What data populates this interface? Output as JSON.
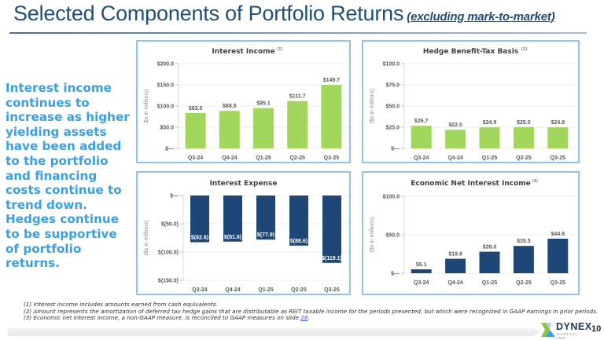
{
  "header": {
    "title": "Selected Components of Portfolio Returns",
    "subtitle": "(excluding mark-to-market)"
  },
  "sidebar": {
    "text": "Interest income continues to increase as higher yielding assets have been added to the portfolio and financing costs continue to trend down. Hedges continue to be supportive of portfolio returns."
  },
  "colors": {
    "green_bar": "#a3d65c",
    "navy_bar": "#1e4677",
    "panel_border": "#8cc4ee",
    "title_blue": "#1f4e79",
    "sidebar_blue": "#3aa0e6"
  },
  "chart_data": [
    {
      "id": "interest-income",
      "type": "bar",
      "title": "Interest Income",
      "footnote_ref": "(1)",
      "categories": [
        "Q3-24",
        "Q4-24",
        "Q1-25",
        "Q2-25",
        "Q3-25"
      ],
      "values": [
        83.5,
        88.5,
        95.1,
        111.7,
        149.7
      ],
      "data_labels": [
        "$83.5",
        "$88.5",
        "$95.1",
        "$111.7",
        "$149.7"
      ],
      "ylabel": "$s in millions)",
      "ylim": [
        0,
        200
      ],
      "yticks": [
        0,
        50,
        100,
        150,
        200
      ],
      "ytick_labels": [
        "$—",
        "$50.0",
        "$100.0",
        "$150.0",
        "$200.0"
      ],
      "color": "#a3d65c",
      "grid": true,
      "label_position": "above"
    },
    {
      "id": "hedge-benefit",
      "type": "bar",
      "title": "Hedge Benefit-Tax Basis",
      "footnote_ref": "(2)",
      "categories": [
        "Q3-24",
        "Q4-24",
        "Q1-25",
        "Q2-25",
        "Q3-25"
      ],
      "values": [
        26.7,
        22.0,
        24.9,
        25.0,
        24.9
      ],
      "data_labels": [
        "$26.7",
        "$22.0",
        "$24.9",
        "$25.0",
        "$24.9"
      ],
      "ylabel": "($s in millions)",
      "ylim": [
        0,
        100
      ],
      "yticks": [
        0,
        25,
        50,
        75,
        100
      ],
      "ytick_labels": [
        "$—",
        "$25.0",
        "$50.0",
        "$75.0",
        "$100.0"
      ],
      "color": "#a3d65c",
      "grid": true,
      "label_position": "above"
    },
    {
      "id": "interest-expense",
      "type": "bar",
      "title": "Interest Expense",
      "footnote_ref": "",
      "categories": [
        "Q3-24",
        "Q4-24",
        "Q1-25",
        "Q2-25",
        "Q3-25"
      ],
      "values": [
        -82.6,
        -81.6,
        -77.9,
        -88.6,
        -119.1
      ],
      "data_labels": [
        "$(82.6)",
        "$(81.6)",
        "$(77.9)",
        "$(88.6)",
        "$(119.1)"
      ],
      "ylabel": "($s in millions)",
      "ylim": [
        -150,
        0
      ],
      "yticks": [
        0,
        -50,
        -100,
        -150
      ],
      "ytick_labels": [
        "$—",
        "$(50.0)",
        "$(100.0)",
        "$(150.0)"
      ],
      "color": "#1e4677",
      "grid": true,
      "label_position": "inside-end"
    },
    {
      "id": "economic-nii",
      "type": "bar",
      "title": "Economic Net Interest Income",
      "footnote_ref": "(3)",
      "categories": [
        "Q3-24",
        "Q4-24",
        "Q1-25",
        "Q2-25",
        "Q3-25"
      ],
      "values": [
        5.1,
        18.8,
        28.0,
        35.5,
        44.9
      ],
      "data_labels": [
        "$5.1",
        "$18.8",
        "$28.0",
        "$35.5",
        "$44.9"
      ],
      "ylabel": "($s in millions)",
      "ylim": [
        0,
        100
      ],
      "yticks": [
        0,
        50,
        100
      ],
      "ytick_labels": [
        "$—",
        "$50.0",
        "$100.0"
      ],
      "color": "#1e4677",
      "grid": true,
      "label_position": "above"
    }
  ],
  "footnotes": [
    "(1) Interest income includes amounts earned from cash equivalents.",
    "(2)  Amount represents the amortization of deferred tax hedge gains that are distributable as REIT taxable income for the periods presented, but which were recognized in GAAP earnings in prior periods.",
    "(3) Economic net interest income, a non-GAAP measure, is reconciled to GAAP measures on slide "
  ],
  "footnote_link": "28",
  "logo": {
    "name": "DYNEX",
    "sub": "CAPITAL INC."
  },
  "page_number": "10"
}
